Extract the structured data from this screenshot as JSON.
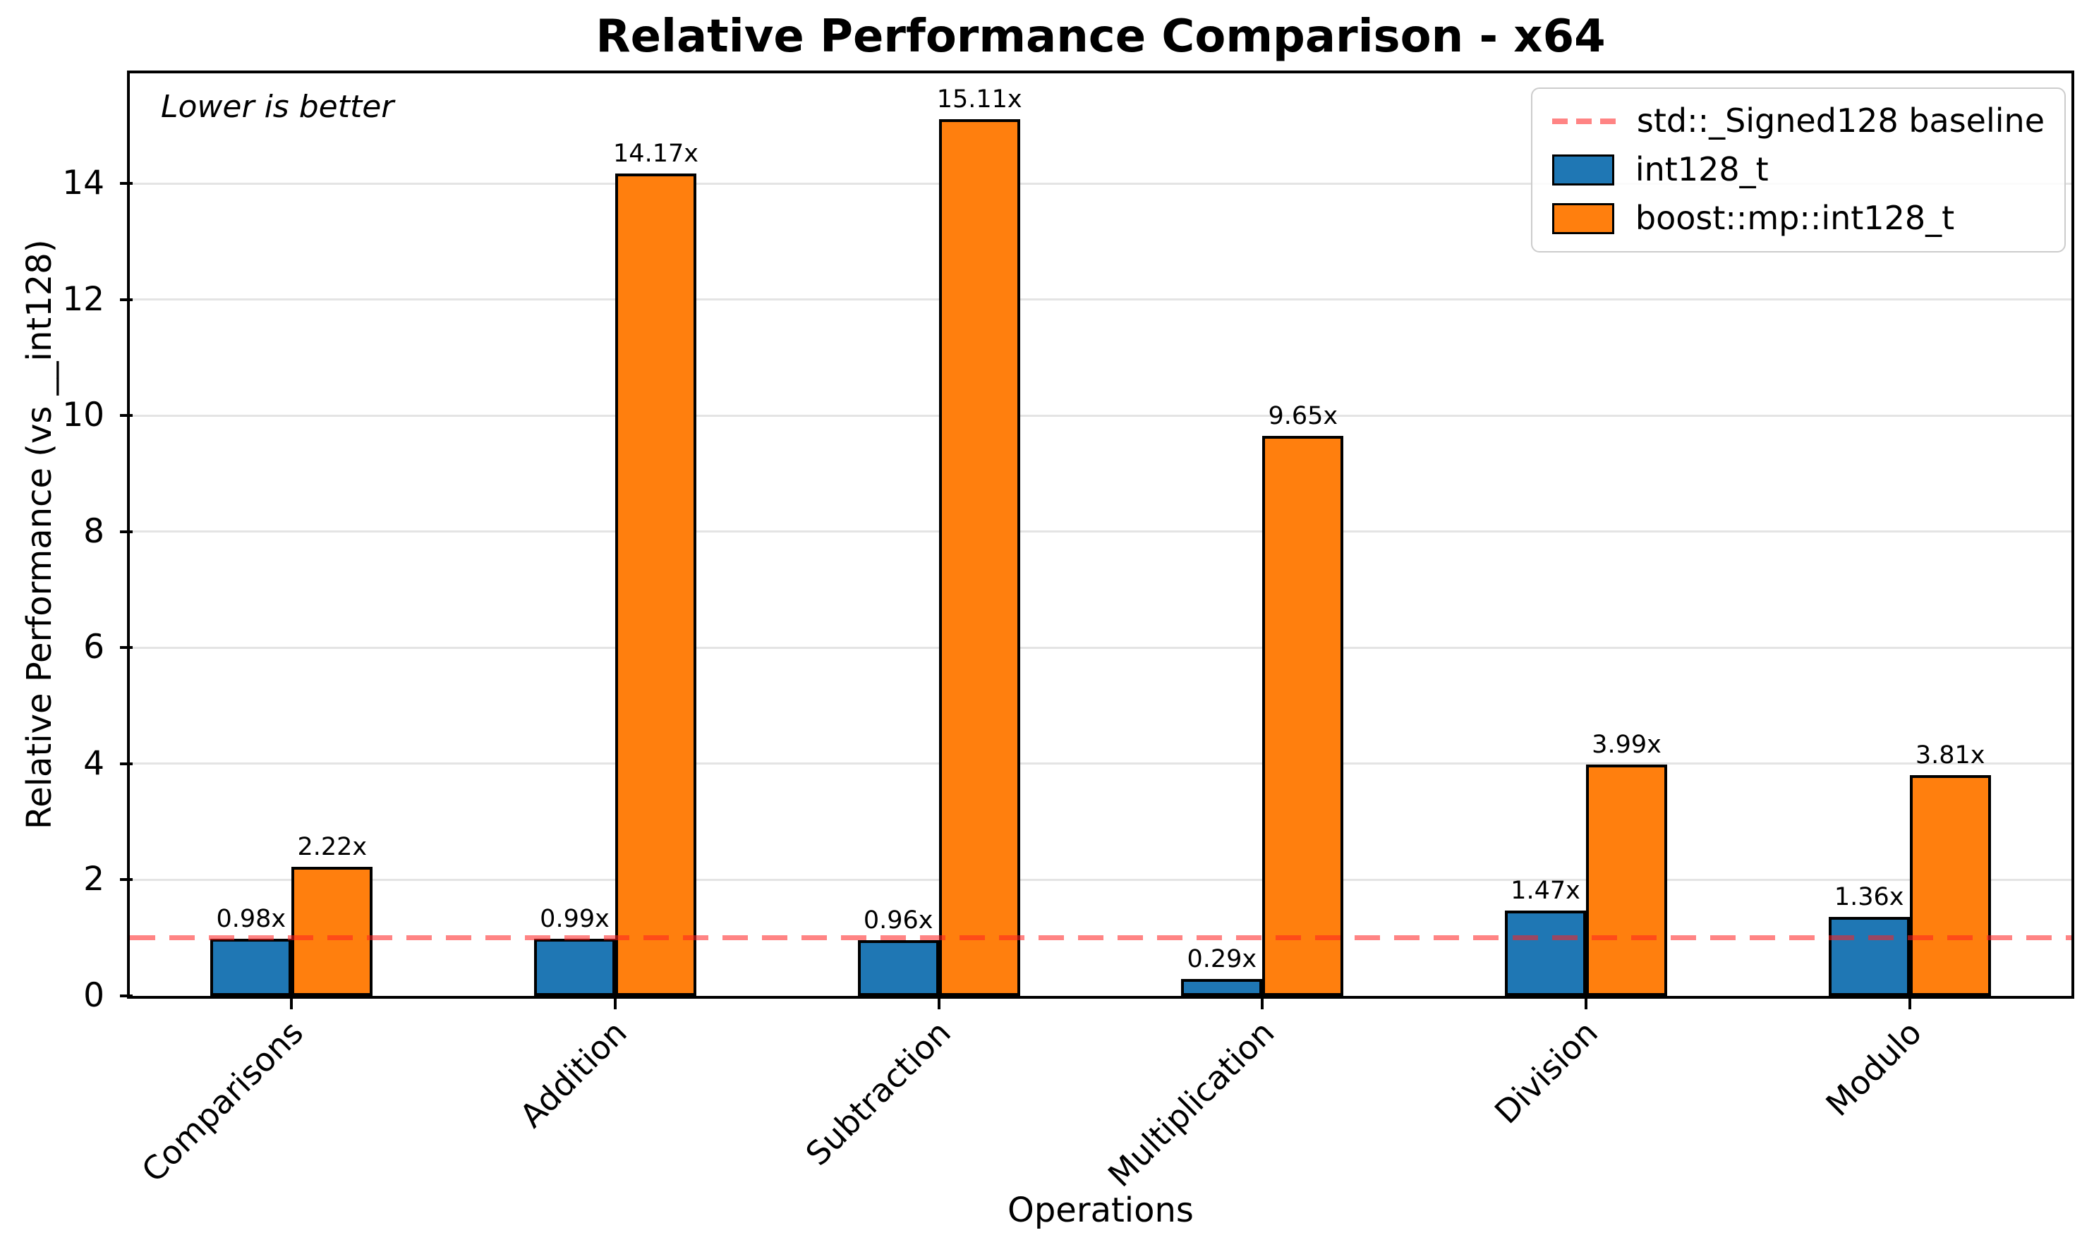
{
  "title": "Relative Performance Comparison - x64",
  "annotation": "Lower is better",
  "axes": {
    "xlabel": "Operations",
    "ylabel": "Relative Performance (vs __int128)"
  },
  "legend": {
    "baseline_label": "std::_Signed128 baseline",
    "series1_label": "int128_t",
    "series2_label": "boost::mp::int128_t"
  },
  "colors": {
    "series1": "#1f77b4",
    "series2": "#ff7f0e",
    "baseline": "#ff2020",
    "grid": "#e4e4e4"
  },
  "chart_data": {
    "type": "bar",
    "title": "Relative Performance Comparison - x64",
    "xlabel": "Operations",
    "ylabel": "Relative Performance (vs __int128)",
    "categories": [
      "Comparisons",
      "Addition",
      "Subtraction",
      "Multiplication",
      "Division",
      "Modulo"
    ],
    "series": [
      {
        "name": "int128_t",
        "color": "#1f77b4",
        "values": [
          0.98,
          0.99,
          0.96,
          0.29,
          1.47,
          1.36
        ],
        "labels": [
          "0.98x",
          "0.99x",
          "0.96x",
          "0.29x",
          "1.47x",
          "1.36x"
        ]
      },
      {
        "name": "boost::mp::int128_t",
        "color": "#ff7f0e",
        "values": [
          2.22,
          14.17,
          15.11,
          9.65,
          3.99,
          3.81
        ],
        "labels": [
          "2.22x",
          "14.17x",
          "15.11x",
          "9.65x",
          "3.99x",
          "3.81x"
        ]
      }
    ],
    "baseline": {
      "value": 1.0,
      "label": "std::_Signed128 baseline",
      "color": "#ff2020"
    },
    "ylim": [
      0,
      15.9
    ],
    "yticks": [
      0,
      2,
      4,
      6,
      8,
      10,
      12,
      14
    ],
    "grid": true,
    "legend_position": "upper right",
    "annotation": "Lower is better",
    "bar_width_fraction": 0.25
  }
}
